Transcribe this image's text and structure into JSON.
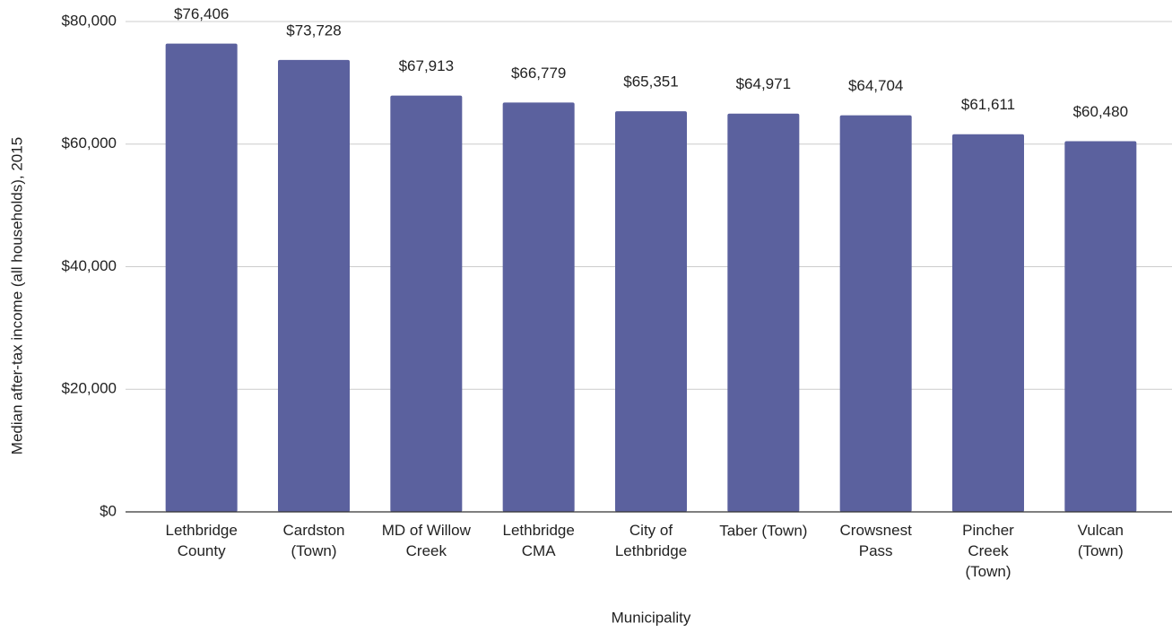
{
  "chart_data": {
    "type": "bar",
    "x_label": "Municipality",
    "y_label": "Median after-tax income (all households), 2015",
    "categories": [
      "Lethbridge\nCounty",
      "Cardston\n(Town)",
      "MD of Willow\nCreek",
      "Lethbridge\nCMA",
      "City of\nLethbridge",
      "Taber (Town)",
      "Crowsnest\nPass",
      "Pincher\nCreek\n(Town)",
      "Vulcan\n(Town)"
    ],
    "values": [
      76406,
      73728,
      67913,
      66779,
      65351,
      64971,
      64704,
      61611,
      60480
    ],
    "value_labels": [
      "$76,406",
      "$73,728",
      "$67,913",
      "$66,779",
      "$65,351",
      "$64,971",
      "$64,704",
      "$61,611",
      "$60,480"
    ],
    "color": "#5b619e",
    "ylim": [
      0,
      80000
    ],
    "yticks": [
      {
        "value": 0,
        "label": "$0"
      },
      {
        "value": 20000,
        "label": "$20,000"
      },
      {
        "value": 40000,
        "label": "$40,000"
      },
      {
        "value": 60000,
        "label": "$60,000"
      },
      {
        "value": 80000,
        "label": "$80,000"
      }
    ],
    "grid": true
  }
}
